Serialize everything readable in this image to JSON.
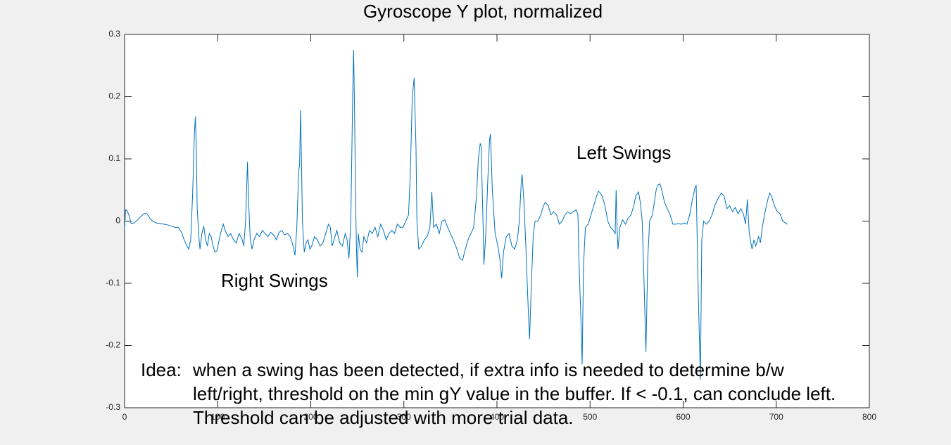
{
  "chart_data": {
    "type": "line",
    "title": "Gyroscope Y plot, normalized",
    "annotations": [
      "Right Swings",
      "Left Swings"
    ],
    "note": {
      "label": "Idea:",
      "lines": [
        "when a swing has been detected, if extra info is needed to determine b/w",
        "left/right, threshold on the min gY value in the buffer. If < -0.1, can conclude left.",
        "Threshold can be adjusted with more trial data."
      ]
    },
    "xlim": [
      0,
      800
    ],
    "xticks": [
      0,
      100,
      200,
      300,
      400,
      500,
      600,
      700,
      800
    ],
    "ylim": [
      -0.3,
      0.3
    ],
    "yticks": [
      -0.3,
      -0.2,
      -0.1,
      0,
      0.1,
      0.2,
      0.3
    ],
    "grid": false,
    "x": [
      0,
      1,
      3,
      5,
      7,
      10,
      14,
      18,
      21,
      24,
      27,
      30,
      34,
      38,
      42,
      46,
      50,
      54,
      58,
      61,
      64,
      67,
      69,
      71,
      73,
      75,
      76,
      77,
      78,
      80,
      81,
      83,
      85,
      87,
      89,
      91,
      93,
      95,
      97,
      99,
      101,
      103,
      106,
      108,
      111,
      114,
      117,
      120,
      123,
      126,
      128,
      130,
      132,
      133,
      135,
      137,
      139,
      142,
      145,
      148,
      151,
      154,
      157,
      160,
      163,
      166,
      169,
      172,
      175,
      178,
      181,
      183,
      185,
      187,
      188,
      189,
      190,
      191,
      193,
      195,
      197,
      199,
      201,
      204,
      207,
      210,
      213,
      216,
      219,
      221,
      223,
      225,
      228,
      231,
      234,
      237,
      239,
      241,
      243,
      244,
      245,
      246,
      247,
      248,
      249,
      250,
      251,
      253,
      255,
      257,
      260,
      263,
      266,
      269,
      272,
      275,
      278,
      281,
      284,
      287,
      290,
      293,
      296,
      299,
      302,
      305,
      307,
      309,
      311,
      313,
      314,
      316,
      319,
      322,
      325,
      328,
      330,
      332,
      335,
      338,
      341,
      344,
      347,
      350,
      353,
      357,
      360,
      363,
      366,
      369,
      372,
      375,
      378,
      380,
      382,
      383,
      385,
      386,
      388,
      390,
      392,
      393,
      395,
      398,
      401,
      403,
      405,
      407,
      410,
      413,
      416,
      419,
      422,
      424,
      426,
      427,
      429,
      431,
      433,
      435,
      437,
      439,
      441,
      444,
      447,
      450,
      452,
      455,
      458,
      461,
      464,
      467,
      470,
      473,
      476,
      479,
      482,
      485,
      487,
      488,
      490,
      491.5,
      493,
      495,
      498,
      501,
      504,
      507,
      509,
      511,
      513,
      516,
      519,
      522,
      525,
      527,
      528,
      529,
      530,
      532,
      535,
      538,
      541,
      544,
      547,
      549,
      552,
      554,
      556,
      558,
      560,
      562,
      564,
      567,
      569,
      571,
      573,
      575,
      577,
      580,
      583,
      586,
      589,
      592,
      595,
      598,
      601,
      604,
      607,
      610,
      613,
      614,
      616,
      618.5,
      620,
      622,
      625,
      628,
      631,
      634,
      637,
      639,
      641,
      644,
      647,
      650,
      653,
      656,
      659,
      662,
      665,
      667,
      669,
      671,
      674,
      676,
      678,
      681,
      683,
      685,
      688,
      691,
      693,
      695,
      698,
      701,
      704,
      707,
      710,
      712
    ],
    "series": [
      {
        "color": "#0072bd",
        "values": [
          -0.014,
          0.018,
          0.016,
          0.008,
          -0.004,
          -0.003,
          0.002,
          0.008,
          0.012,
          0.012,
          0.005,
          0.0,
          -0.003,
          -0.004,
          -0.005,
          -0.006,
          -0.008,
          -0.01,
          -0.01,
          -0.018,
          -0.03,
          -0.04,
          -0.045,
          -0.03,
          0.04,
          0.14,
          0.168,
          0.12,
          0.02,
          -0.03,
          -0.045,
          -0.02,
          -0.008,
          -0.03,
          -0.04,
          -0.02,
          -0.025,
          -0.04,
          -0.05,
          -0.048,
          -0.035,
          -0.02,
          -0.005,
          -0.015,
          -0.025,
          -0.02,
          -0.03,
          -0.035,
          -0.02,
          -0.028,
          -0.04,
          0.0,
          0.095,
          0.04,
          -0.03,
          -0.045,
          -0.03,
          -0.02,
          -0.025,
          -0.015,
          -0.02,
          -0.025,
          -0.018,
          -0.022,
          -0.03,
          -0.018,
          -0.015,
          -0.022,
          -0.02,
          -0.025,
          -0.04,
          -0.055,
          -0.01,
          0.08,
          0.09,
          0.178,
          0.1,
          0.0,
          -0.05,
          -0.035,
          -0.03,
          -0.045,
          -0.04,
          -0.025,
          -0.03,
          -0.04,
          -0.035,
          -0.02,
          -0.005,
          -0.01,
          -0.04,
          -0.03,
          -0.015,
          -0.035,
          -0.04,
          -0.02,
          -0.03,
          -0.06,
          0.0,
          0.1,
          0.2,
          0.275,
          0.18,
          0.05,
          -0.04,
          -0.09,
          -0.02,
          -0.045,
          -0.05,
          -0.025,
          -0.035,
          -0.015,
          -0.02,
          -0.01,
          -0.025,
          -0.005,
          -0.015,
          -0.03,
          -0.02,
          -0.015,
          -0.02,
          -0.005,
          -0.01,
          -0.01,
          0.0,
          0.01,
          0.08,
          0.2,
          0.23,
          0.12,
          0.0,
          -0.045,
          -0.04,
          -0.03,
          -0.025,
          -0.01,
          0.047,
          -0.01,
          -0.005,
          -0.02,
          0.0,
          0.002,
          -0.01,
          -0.02,
          -0.03,
          -0.045,
          -0.06,
          -0.063,
          -0.045,
          -0.03,
          -0.02,
          -0.01,
          0.04,
          0.1,
          0.125,
          0.12,
          0.0,
          -0.07,
          -0.02,
          0.06,
          0.13,
          0.14,
          0.05,
          -0.02,
          -0.04,
          -0.06,
          -0.092,
          -0.05,
          -0.025,
          -0.02,
          -0.04,
          -0.045,
          -0.03,
          0.0,
          0.06,
          0.075,
          0.03,
          -0.04,
          -0.12,
          -0.19,
          -0.1,
          -0.02,
          0.0,
          0.0,
          0.01,
          0.025,
          0.03,
          0.025,
          0.01,
          0.015,
          0.01,
          -0.005,
          0.0,
          0.01,
          0.015,
          0.012,
          0.015,
          0.018,
          0.01,
          -0.06,
          -0.15,
          -0.23,
          -0.07,
          -0.01,
          -0.005,
          0.01,
          0.025,
          0.04,
          0.048,
          0.045,
          0.04,
          0.025,
          0.0,
          -0.01,
          -0.015,
          -0.02,
          0.05,
          -0.01,
          -0.045,
          -0.01,
          0.002,
          -0.005,
          0.005,
          0.01,
          0.025,
          0.04,
          0.047,
          0.03,
          0.0,
          -0.1,
          -0.21,
          -0.06,
          0.0,
          0.01,
          0.03,
          0.05,
          0.058,
          0.06,
          0.05,
          0.03,
          0.02,
          0.01,
          -0.005,
          -0.005,
          -0.004,
          -0.005,
          -0.003,
          -0.005,
          0.01,
          0.035,
          0.055,
          0.057,
          -0.1,
          -0.255,
          -0.03,
          0.0,
          -0.005,
          0.0,
          0.01,
          0.025,
          0.035,
          0.04,
          0.045,
          0.04,
          0.02,
          0.025,
          0.015,
          0.022,
          0.012,
          0.02,
          0.01,
          -0.005,
          0.035,
          -0.02,
          -0.045,
          -0.03,
          -0.04,
          -0.025,
          -0.035,
          -0.01,
          0.015,
          0.035,
          0.045,
          0.04,
          0.025,
          0.015,
          0.012,
          0.0,
          -0.003,
          -0.005
        ]
      }
    ]
  }
}
